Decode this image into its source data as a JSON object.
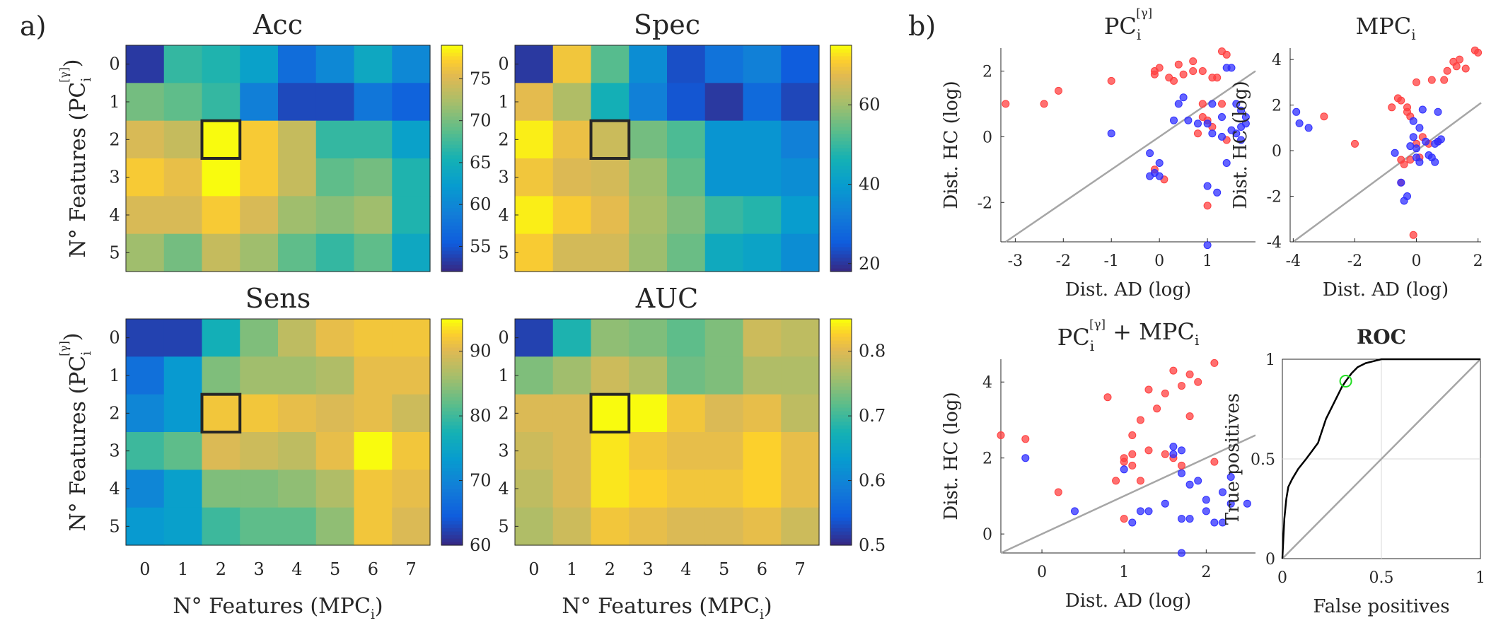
{
  "figure": {
    "panel_a_label": "a)",
    "panel_b_label": "b)"
  },
  "chart_data": [
    {
      "type": "heatmap",
      "id": "acc",
      "title": "Acc",
      "xlabel": "N° Features (MPCi)",
      "ylabel": "N° Features (PCi[γ])",
      "x_ticks": [
        "0",
        "1",
        "2",
        "3",
        "4",
        "5",
        "6",
        "7"
      ],
      "y_ticks": [
        "0",
        "1",
        "2",
        "3",
        "4",
        "5"
      ],
      "clim": [
        52,
        79
      ],
      "colorbar_ticks": [
        55,
        60,
        65,
        70,
        75
      ],
      "highlight": {
        "row": 2,
        "col": 2
      },
      "values": [
        [
          53,
          67,
          66,
          63,
          57,
          60,
          64,
          60
        ],
        [
          70,
          69,
          67,
          59,
          54,
          54,
          58,
          56
        ],
        [
          75,
          74,
          79,
          77,
          74,
          67,
          67,
          63
        ],
        [
          77,
          76,
          79,
          77,
          74,
          69,
          70,
          66
        ],
        [
          75,
          75,
          77,
          75,
          72,
          71,
          72,
          66
        ],
        [
          72,
          70,
          74,
          72,
          69,
          67,
          69,
          64
        ]
      ]
    },
    {
      "type": "heatmap",
      "id": "spec",
      "title": "Spec",
      "xlabel": "N° Features (MPCi)",
      "ylabel": "",
      "x_ticks": [
        "0",
        "1",
        "2",
        "3",
        "4",
        "5",
        "6",
        "7"
      ],
      "y_ticks": [
        "0",
        "1",
        "2",
        "3",
        "4",
        "5"
      ],
      "clim": [
        18,
        75
      ],
      "colorbar_ticks": [
        20,
        40,
        60
      ],
      "highlight": {
        "row": 2,
        "col": 2
      },
      "values": [
        [
          20,
          70,
          53,
          36,
          23,
          30,
          33,
          25
        ],
        [
          68,
          62,
          46,
          33,
          24,
          20,
          28,
          22
        ],
        [
          74,
          69,
          65,
          56,
          52,
          38,
          38,
          33
        ],
        [
          70,
          67,
          66,
          60,
          54,
          38,
          38,
          36
        ],
        [
          74,
          71,
          68,
          61,
          57,
          50,
          48,
          40
        ],
        [
          71,
          66,
          66,
          60,
          55,
          44,
          42,
          36
        ]
      ]
    },
    {
      "type": "heatmap",
      "id": "sens",
      "title": "Sens",
      "xlabel": "N° Features (MPCi)",
      "ylabel": "N° Features (PCi[γ])",
      "x_ticks": [
        "0",
        "1",
        "2",
        "3",
        "4",
        "5",
        "6",
        "7"
      ],
      "y_ticks": [
        "0",
        "1",
        "2",
        "3",
        "4",
        "5"
      ],
      "clim": [
        60,
        95
      ],
      "colorbar_ticks": [
        60,
        70,
        80,
        90
      ],
      "highlight": {
        "row": 2,
        "col": 2
      },
      "values": [
        [
          62,
          62,
          77,
          84,
          88,
          91,
          92,
          92
        ],
        [
          67,
          73,
          84,
          86,
          86,
          87,
          91,
          91
        ],
        [
          70,
          73,
          92,
          92,
          91,
          90,
          91,
          89
        ],
        [
          80,
          82,
          90,
          89,
          88,
          91,
          95,
          92
        ],
        [
          70,
          74,
          84,
          84,
          85,
          87,
          92,
          91
        ],
        [
          73,
          74,
          80,
          82,
          82,
          85,
          92,
          90
        ]
      ]
    },
    {
      "type": "heatmap",
      "id": "auc",
      "title": "AUC",
      "xlabel": "N° Features (MPCi)",
      "ylabel": "",
      "x_ticks": [
        "0",
        "1",
        "2",
        "3",
        "4",
        "5",
        "6",
        "7"
      ],
      "y_ticks": [
        "0",
        "1",
        "2",
        "3",
        "4",
        "5"
      ],
      "clim": [
        0.5,
        0.85
      ],
      "colorbar_ticks": [
        0.5,
        0.6,
        0.7,
        0.8
      ],
      "highlight": {
        "row": 2,
        "col": 2
      },
      "values": [
        [
          0.52,
          0.68,
          0.75,
          0.74,
          0.72,
          0.74,
          0.79,
          0.78
        ],
        [
          0.74,
          0.76,
          0.79,
          0.77,
          0.73,
          0.74,
          0.77,
          0.77
        ],
        [
          0.8,
          0.8,
          0.85,
          0.85,
          0.82,
          0.8,
          0.81,
          0.78
        ],
        [
          0.79,
          0.8,
          0.84,
          0.82,
          0.81,
          0.81,
          0.83,
          0.81
        ],
        [
          0.78,
          0.8,
          0.84,
          0.83,
          0.82,
          0.82,
          0.83,
          0.81
        ],
        [
          0.77,
          0.79,
          0.82,
          0.81,
          0.8,
          0.8,
          0.81,
          0.79
        ]
      ]
    },
    {
      "type": "scatter",
      "id": "sc_pc",
      "title": "PCi[γ]",
      "xlabel": "Dist. AD (log)",
      "ylabel": "Dist. HC (log)",
      "xlim": [
        -3.3,
        2.0
      ],
      "ylim": [
        -3.2,
        2.7
      ],
      "x_ticks": [
        -3,
        -2,
        -1,
        0,
        1
      ],
      "y_ticks": [
        -2,
        0,
        2
      ],
      "diagonal": true,
      "series": [
        {
          "name": "red",
          "color": "#ff4040",
          "points": [
            [
              -3.2,
              1.0
            ],
            [
              -2.4,
              1.0
            ],
            [
              -2.1,
              1.4
            ],
            [
              -1.0,
              1.7
            ],
            [
              -0.1,
              2.0
            ],
            [
              0.0,
              2.1
            ],
            [
              -0.1,
              1.9
            ],
            [
              0.2,
              1.8
            ],
            [
              0.3,
              1.7
            ],
            [
              0.5,
              1.9
            ],
            [
              0.7,
              2.0
            ],
            [
              0.9,
              2.0
            ],
            [
              1.1,
              1.8
            ],
            [
              1.3,
              2.6
            ],
            [
              1.4,
              2.5
            ],
            [
              1.2,
              1.8
            ],
            [
              0.7,
              2.3
            ],
            [
              0.4,
              2.2
            ],
            [
              0.9,
              1.0
            ],
            [
              1.0,
              0.5
            ],
            [
              1.1,
              0.3
            ],
            [
              1.3,
              1.0
            ],
            [
              1.4,
              -0.1
            ],
            [
              0.8,
              0.1
            ],
            [
              0.9,
              0.6
            ],
            [
              1.0,
              -2.1
            ],
            [
              0.1,
              -1.3
            ],
            [
              -0.1,
              -1.0
            ]
          ]
        },
        {
          "name": "blue",
          "color": "#3030ff",
          "points": [
            [
              -1.0,
              0.1
            ],
            [
              -0.2,
              -0.5
            ],
            [
              -0.1,
              -1.1
            ],
            [
              -0.2,
              -1.2
            ],
            [
              0.0,
              -1.2
            ],
            [
              0.0,
              -0.8
            ],
            [
              0.3,
              0.5
            ],
            [
              0.4,
              1.0
            ],
            [
              0.5,
              1.2
            ],
            [
              0.6,
              0.5
            ],
            [
              0.8,
              0.4
            ],
            [
              1.0,
              0.4
            ],
            [
              1.1,
              1.0
            ],
            [
              1.3,
              0.6
            ],
            [
              1.3,
              0.0
            ],
            [
              1.4,
              2.1
            ],
            [
              1.5,
              2.1
            ],
            [
              1.5,
              0.2
            ],
            [
              1.6,
              0.1
            ],
            [
              1.7,
              0.3
            ],
            [
              1.7,
              0.8
            ],
            [
              1.8,
              0.6
            ],
            [
              1.8,
              0.4
            ],
            [
              1.7,
              -0.1
            ],
            [
              1.6,
              1.0
            ],
            [
              1.4,
              -0.8
            ],
            [
              1.2,
              -1.7
            ],
            [
              1.0,
              -1.5
            ],
            [
              1.0,
              -3.3
            ],
            [
              1.1,
              0.1
            ]
          ]
        }
      ]
    },
    {
      "type": "scatter",
      "id": "sc_mpc",
      "title": "MPCi",
      "xlabel": "Dist. AD (log)",
      "ylabel": "Dist. HC (log)",
      "xlim": [
        -4.1,
        2.1
      ],
      "ylim": [
        -4.0,
        4.5
      ],
      "x_ticks": [
        -4,
        -2,
        0,
        2
      ],
      "y_ticks": [
        -4,
        -2,
        0,
        2,
        4
      ],
      "diagonal": true,
      "series": [
        {
          "name": "red",
          "color": "#ff4040",
          "points": [
            [
              -3.0,
              1.5
            ],
            [
              -2.0,
              0.3
            ],
            [
              -0.8,
              1.9
            ],
            [
              -0.6,
              2.3
            ],
            [
              -0.5,
              2.2
            ],
            [
              -0.3,
              1.7
            ],
            [
              -0.2,
              1.5
            ],
            [
              -0.3,
              1.9
            ],
            [
              0.0,
              3.0
            ],
            [
              0.5,
              3.1
            ],
            [
              0.9,
              3.1
            ],
            [
              1.0,
              3.5
            ],
            [
              1.2,
              3.9
            ],
            [
              1.3,
              3.7
            ],
            [
              1.4,
              4.0
            ],
            [
              1.6,
              3.6
            ],
            [
              1.9,
              4.4
            ],
            [
              2.0,
              4.3
            ],
            [
              -0.5,
              -1.4
            ],
            [
              -0.4,
              -0.6
            ],
            [
              0.1,
              -0.3
            ],
            [
              0.0,
              0.3
            ],
            [
              0.2,
              0.6
            ],
            [
              0.4,
              0.3
            ],
            [
              -0.1,
              -3.7
            ],
            [
              -0.2,
              -0.4
            ],
            [
              -0.5,
              -0.4
            ],
            [
              0.7,
              0.4
            ]
          ]
        },
        {
          "name": "blue",
          "color": "#3030ff",
          "points": [
            [
              -3.9,
              1.7
            ],
            [
              -3.8,
              1.2
            ],
            [
              -3.5,
              1.0
            ],
            [
              -0.7,
              -0.1
            ],
            [
              -0.5,
              -1.4
            ],
            [
              -0.4,
              -2.2
            ],
            [
              -0.3,
              -2.0
            ],
            [
              -0.2,
              0.2
            ],
            [
              -0.1,
              0.6
            ],
            [
              0.0,
              -0.3
            ],
            [
              0.1,
              -0.5
            ],
            [
              0.2,
              1.8
            ],
            [
              0.3,
              0.4
            ],
            [
              0.5,
              -0.3
            ],
            [
              0.6,
              0.3
            ],
            [
              0.6,
              -0.5
            ],
            [
              0.7,
              1.7
            ],
            [
              0.7,
              0.4
            ],
            [
              0.8,
              0.5
            ],
            [
              0.4,
              -0.2
            ],
            [
              -0.1,
              1.3
            ],
            [
              0.0,
              0.1
            ],
            [
              0.1,
              1.0
            ]
          ]
        }
      ]
    },
    {
      "type": "scatter",
      "id": "sc_comb",
      "title": "PCi[γ] + MPCi",
      "xlabel": "Dist. AD (log)",
      "ylabel": "Dist. HC (log)",
      "xlim": [
        -0.5,
        2.6
      ],
      "ylim": [
        -0.5,
        4.6
      ],
      "x_ticks": [
        0,
        1,
        2
      ],
      "y_ticks": [
        0,
        2,
        4
      ],
      "diagonal": true,
      "series": [
        {
          "name": "red",
          "color": "#ff4040",
          "points": [
            [
              -0.5,
              2.6
            ],
            [
              -0.2,
              2.5
            ],
            [
              0.2,
              1.1
            ],
            [
              0.8,
              3.6
            ],
            [
              0.9,
              1.4
            ],
            [
              1.0,
              1.9
            ],
            [
              1.0,
              2.0
            ],
            [
              1.1,
              2.1
            ],
            [
              1.1,
              2.6
            ],
            [
              1.2,
              3.0
            ],
            [
              1.3,
              3.8
            ],
            [
              1.4,
              3.3
            ],
            [
              1.5,
              3.7
            ],
            [
              1.6,
              4.3
            ],
            [
              1.7,
              3.9
            ],
            [
              1.8,
              4.2
            ],
            [
              1.9,
              4.0
            ],
            [
              2.1,
              4.5
            ],
            [
              1.3,
              2.2
            ],
            [
              1.1,
              1.8
            ],
            [
              1.0,
              0.4
            ],
            [
              1.7,
              1.8
            ],
            [
              1.6,
              2.0
            ],
            [
              1.5,
              2.1
            ],
            [
              1.8,
              3.1
            ],
            [
              2.1,
              1.9
            ],
            [
              1.2,
              1.4
            ]
          ]
        },
        {
          "name": "blue",
          "color": "#3030ff",
          "points": [
            [
              -0.2,
              2.0
            ],
            [
              0.4,
              0.6
            ],
            [
              1.0,
              1.7
            ],
            [
              1.1,
              0.3
            ],
            [
              1.2,
              0.6
            ],
            [
              1.3,
              0.6
            ],
            [
              1.5,
              0.8
            ],
            [
              1.6,
              2.3
            ],
            [
              1.6,
              2.1
            ],
            [
              1.7,
              2.2
            ],
            [
              1.7,
              1.6
            ],
            [
              1.8,
              1.3
            ],
            [
              1.7,
              0.4
            ],
            [
              1.8,
              0.4
            ],
            [
              1.9,
              1.4
            ],
            [
              2.0,
              0.9
            ],
            [
              2.1,
              0.3
            ],
            [
              2.2,
              0.3
            ],
            [
              2.2,
              1.1
            ],
            [
              2.3,
              1.5
            ],
            [
              2.3,
              0.8
            ],
            [
              2.5,
              0.8
            ],
            [
              1.7,
              -0.5
            ],
            [
              2.0,
              0.6
            ]
          ]
        }
      ]
    },
    {
      "type": "line",
      "id": "roc",
      "title": "ROC",
      "xlabel": "False positives",
      "ylabel": "True positives",
      "xlim": [
        0,
        1
      ],
      "ylim": [
        0,
        1
      ],
      "x_ticks": [
        "0",
        "0.5",
        "1"
      ],
      "y_ticks": [
        "0",
        "0.5",
        "1"
      ],
      "grid": true,
      "diagonal": true,
      "operating_point": [
        0.32,
        0.89
      ],
      "x": [
        0,
        0.01,
        0.02,
        0.03,
        0.05,
        0.08,
        0.12,
        0.15,
        0.18,
        0.2,
        0.22,
        0.25,
        0.28,
        0.3,
        0.32,
        0.35,
        0.38,
        0.42,
        0.46,
        0.5,
        0.55,
        0.6,
        0.7,
        0.8,
        0.9,
        1.0
      ],
      "y": [
        0,
        0.2,
        0.3,
        0.36,
        0.4,
        0.45,
        0.5,
        0.54,
        0.58,
        0.64,
        0.7,
        0.76,
        0.82,
        0.86,
        0.89,
        0.93,
        0.96,
        0.98,
        0.99,
        1.0,
        1.0,
        1.0,
        1.0,
        1.0,
        1.0,
        1.0
      ]
    }
  ]
}
